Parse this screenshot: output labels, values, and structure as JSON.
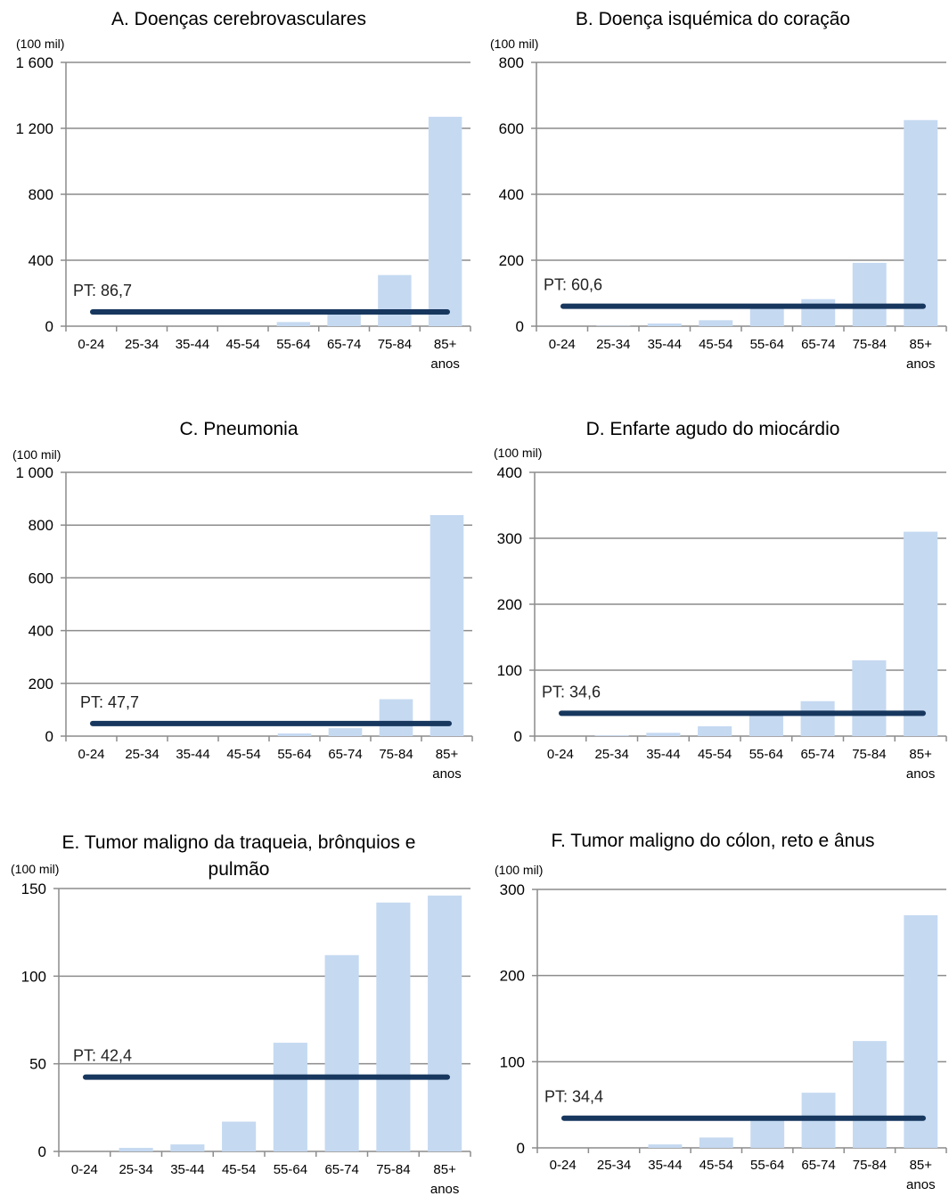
{
  "chart_data": [
    {
      "type": "bar",
      "title": [
        "A. Doenças cerebrovasculares"
      ],
      "unit": "(100 mil)",
      "categories": [
        "0-24",
        "25-34",
        "35-44",
        "45-54",
        "55-64",
        "65-74",
        "75-84",
        "85+ anos"
      ],
      "values": [
        0,
        0,
        0,
        0,
        25,
        95,
        310,
        1270
      ],
      "ylim": [
        0,
        1600
      ],
      "yticks": [
        0,
        400,
        800,
        1200,
        1600
      ],
      "ytick_labels": [
        "0",
        "400",
        "800",
        "1 200",
        "1 600"
      ],
      "reference": {
        "label": "PT: 86,7",
        "value": 86.7
      },
      "grid": true
    },
    {
      "type": "bar",
      "title": [
        "B. Doença isquémica do coração"
      ],
      "unit": "(100 mil)",
      "categories": [
        "0-24",
        "25-34",
        "35-44",
        "45-54",
        "55-64",
        "65-74",
        "75-84",
        "85+ anos"
      ],
      "values": [
        0,
        1,
        8,
        18,
        55,
        82,
        192,
        625
      ],
      "ylim": [
        0,
        800
      ],
      "yticks": [
        0,
        200,
        400,
        600,
        800
      ],
      "ytick_labels": [
        "0",
        "200",
        "400",
        "600",
        "800"
      ],
      "reference": {
        "label": "PT: 60,6",
        "value": 60.6
      },
      "grid": true
    },
    {
      "type": "bar",
      "title": [
        "C. Pneumonia"
      ],
      "unit": "(100 mil)",
      "categories": [
        "0-24",
        "25-34",
        "35-44",
        "45-54",
        "55-64",
        "65-74",
        "75-84",
        "85+ anos"
      ],
      "values": [
        0,
        0,
        0,
        0,
        10,
        30,
        140,
        838
      ],
      "ylim": [
        0,
        1000
      ],
      "yticks": [
        0,
        200,
        400,
        600,
        800,
        1000
      ],
      "ytick_labels": [
        "0",
        "200",
        "400",
        "600",
        "800",
        "1 000"
      ],
      "reference": {
        "label": "PT: 47,7",
        "value": 47.7
      },
      "grid": true
    },
    {
      "type": "bar",
      "title": [
        "D. Enfarte agudo do miocárdio"
      ],
      "unit": "(100 mil)",
      "categories": [
        "0-24",
        "25-34",
        "35-44",
        "45-54",
        "55-64",
        "65-74",
        "75-84",
        "85+ anos"
      ],
      "values": [
        0,
        1,
        5,
        15,
        35,
        53,
        115,
        310
      ],
      "ylim": [
        0,
        400
      ],
      "yticks": [
        0,
        100,
        200,
        300,
        400
      ],
      "ytick_labels": [
        "0",
        "100",
        "200",
        "300",
        "400"
      ],
      "reference": {
        "label": "PT: 34,6",
        "value": 34.6
      },
      "grid": true
    },
    {
      "type": "bar",
      "title": [
        "E. Tumor maligno da traqueia, brônquios e",
        "pulmão"
      ],
      "unit": "(100 mil)",
      "categories": [
        "0-24",
        "25-34",
        "35-44",
        "45-54",
        "55-64",
        "65-74",
        "75-84",
        "85+ anos"
      ],
      "values": [
        0,
        2,
        4,
        17,
        62,
        112,
        142,
        146
      ],
      "ylim": [
        0,
        150
      ],
      "yticks": [
        0,
        50,
        100,
        150
      ],
      "ytick_labels": [
        "0",
        "50",
        "100",
        "150"
      ],
      "reference": {
        "label": "PT: 42,4",
        "value": 42.4
      },
      "grid": true
    },
    {
      "type": "bar",
      "title": [
        "F. Tumor maligno do cólon, reto e ânus"
      ],
      "unit": "(100 mil)",
      "categories": [
        "0-24",
        "25-34",
        "35-44",
        "45-54",
        "55-64",
        "65-74",
        "75-84",
        "85+ anos"
      ],
      "values": [
        0,
        0,
        4,
        12,
        33,
        64,
        124,
        270
      ],
      "ylim": [
        0,
        300
      ],
      "yticks": [
        0,
        100,
        200,
        300
      ],
      "ytick_labels": [
        "0",
        "100",
        "200",
        "300"
      ],
      "reference": {
        "label": "PT: 34,4",
        "value": 34.4
      },
      "grid": true
    }
  ],
  "colors": {
    "bar": "#c5d9f1",
    "reference_line": "#17375e",
    "grid": "#8c8c8c",
    "text": "#000000",
    "reference_text": "#222222"
  }
}
